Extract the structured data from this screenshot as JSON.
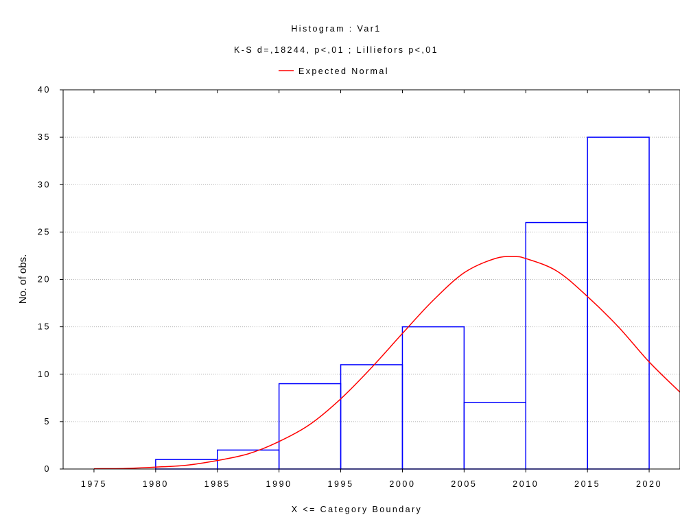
{
  "chart_data": {
    "type": "bar",
    "title": "Histogram : Var1",
    "subtitle": "K-S d=,18244, p<,01 ; Lilliefors p<,01",
    "xlabel": "X <= Category Boundary",
    "ylabel": "No. of obs.",
    "bin_edges": [
      1980,
      1985,
      1990,
      1995,
      2000,
      2005,
      2010,
      2015,
      2020
    ],
    "values": [
      1,
      2,
      9,
      11,
      15,
      7,
      26,
      35
    ],
    "x_ticks": [
      1975,
      1980,
      1985,
      1990,
      1995,
      2000,
      2005,
      2010,
      2015,
      2020
    ],
    "y_ticks": [
      0,
      5,
      10,
      15,
      20,
      25,
      30,
      35,
      40
    ],
    "xlim": [
      1972.5,
      2022.5
    ],
    "ylim": [
      0,
      40
    ],
    "grid": "horizontal dotted",
    "legend": {
      "placement": "top-center",
      "entries": [
        {
          "name": "Expected Normal",
          "color": "#ff0000"
        }
      ]
    },
    "series": [
      {
        "name": "Histogram",
        "type": "bar",
        "color": "#0000ff"
      },
      {
        "name": "Expected Normal",
        "type": "line",
        "color": "#ff0000",
        "x": [
          1975,
          1977.5,
          1980,
          1982.5,
          1985,
          1987.5,
          1990,
          1992.5,
          1995,
          1997.5,
          2000,
          2002.5,
          2005,
          2007.5,
          2009,
          2010,
          2012.5,
          2015,
          2017.5,
          2020,
          2022.5
        ],
        "y": [
          0.03,
          0.06,
          0.2,
          0.4,
          0.9,
          1.6,
          2.9,
          4.7,
          7.4,
          10.7,
          14.3,
          17.8,
          20.7,
          22.2,
          22.4,
          22.2,
          20.9,
          18.2,
          15.0,
          11.3,
          8.1
        ]
      }
    ]
  }
}
